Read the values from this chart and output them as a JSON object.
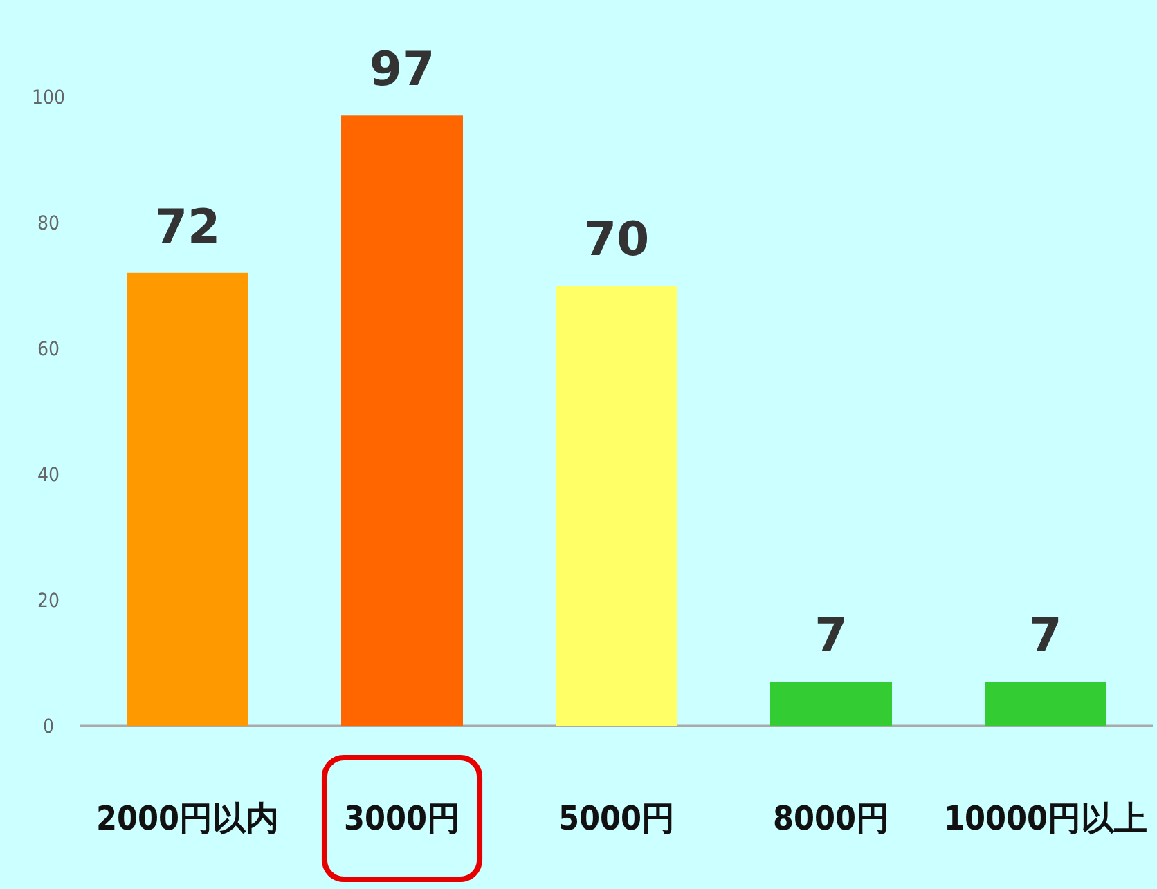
{
  "chart_data": {
    "type": "bar",
    "categories": [
      "2000円以内",
      "3000円",
      "5000円",
      "8000円",
      "10000円以上"
    ],
    "values": [
      72,
      97,
      70,
      7,
      7
    ],
    "colors": [
      "#ff9900",
      "#ff6600",
      "#ffff66",
      "#33cc33",
      "#33cc33"
    ],
    "ylim": [
      0,
      100
    ],
    "yticks": [
      0,
      20,
      40,
      60,
      80,
      100
    ],
    "data_labels": true
  }
}
